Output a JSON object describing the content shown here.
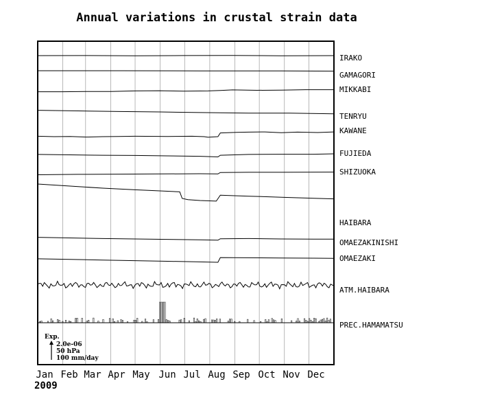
{
  "chart_data": {
    "type": "line",
    "title": "Annual variations in crustal strain data",
    "year": "2009",
    "months": [
      "Jan",
      "Feb",
      "Mar",
      "Apr",
      "May",
      "Jun",
      "Jul",
      "Aug",
      "Sep",
      "Oct",
      "Nov",
      "Dec"
    ],
    "grid": true,
    "legend_position": "right",
    "scale": {
      "label": "Exp.",
      "lines": [
        "2.0e-06",
        "50 hPa",
        "100 mm/day"
      ]
    },
    "series": [
      {
        "name": "IRAKO",
        "points": [
          [
            0,
            0
          ],
          [
            60,
            0.02
          ],
          [
            120,
            -0.05
          ],
          [
            180,
            0.02
          ],
          [
            240,
            0.05
          ],
          [
            300,
            -0.05
          ],
          [
            365,
            0
          ]
        ]
      },
      {
        "name": "GAMAGORI",
        "points": [
          [
            0,
            0
          ],
          [
            100,
            0
          ],
          [
            200,
            -0.05
          ],
          [
            300,
            -0.1
          ],
          [
            365,
            -0.2
          ]
        ]
      },
      {
        "name": "MIKKABI",
        "points": [
          [
            0,
            -0.2
          ],
          [
            30,
            -0.2
          ],
          [
            60,
            -0.1
          ],
          [
            90,
            -0.05
          ],
          [
            120,
            0.2
          ],
          [
            150,
            0.3
          ],
          [
            180,
            0.1
          ],
          [
            210,
            0.2
          ],
          [
            225,
            0.4
          ],
          [
            240,
            0.7
          ],
          [
            270,
            0.5
          ],
          [
            300,
            0.6
          ],
          [
            330,
            0.8
          ],
          [
            365,
            0.8
          ]
        ]
      },
      {
        "name": "TENRYU",
        "points": [
          [
            0,
            0.8
          ],
          [
            50,
            0.5
          ],
          [
            100,
            0.2
          ],
          [
            150,
            0
          ],
          [
            200,
            -0.3
          ],
          [
            260,
            -0.6
          ],
          [
            310,
            -0.6
          ],
          [
            365,
            -0.9
          ]
        ]
      },
      {
        "name": "KAWANE",
        "points": [
          [
            0,
            -0.8
          ],
          [
            20,
            -1.0
          ],
          [
            40,
            -0.9
          ],
          [
            60,
            -1.2
          ],
          [
            80,
            -1.0
          ],
          [
            100,
            -0.9
          ],
          [
            120,
            -0.8
          ],
          [
            160,
            -0.9
          ],
          [
            190,
            -0.8
          ],
          [
            205,
            -1.0
          ],
          [
            210,
            -1.3
          ],
          [
            213,
            -1.2
          ],
          [
            222,
            -1.0
          ],
          [
            225,
            0.8
          ],
          [
            245,
            1.1
          ],
          [
            260,
            1.2
          ],
          [
            280,
            1.3
          ],
          [
            300,
            0.9
          ],
          [
            320,
            1.2
          ],
          [
            345,
            1.0
          ],
          [
            365,
            1.3
          ]
        ]
      },
      {
        "name": "FUJIEDA",
        "points": [
          [
            0,
            0.7
          ],
          [
            40,
            0.5
          ],
          [
            80,
            0.3
          ],
          [
            120,
            0.2
          ],
          [
            160,
            0
          ],
          [
            200,
            -0.2
          ],
          [
            222,
            -0.5
          ],
          [
            225,
            0.3
          ],
          [
            260,
            0.7
          ],
          [
            300,
            0.8
          ],
          [
            340,
            0.8
          ],
          [
            365,
            1.0
          ]
        ]
      },
      {
        "name": "SHIZUOKA",
        "points": [
          [
            0,
            -0.5
          ],
          [
            50,
            -0.3
          ],
          [
            100,
            -0.2
          ],
          [
            150,
            -0.1
          ],
          [
            200,
            0
          ],
          [
            222,
            -0.1
          ],
          [
            225,
            0.6
          ],
          [
            260,
            0.7
          ],
          [
            300,
            0.7
          ],
          [
            365,
            0.8
          ]
        ]
      },
      {
        "name": "HAIBARA",
        "points": [
          [
            0,
            9.0
          ],
          [
            40,
            8.0
          ],
          [
            80,
            7.0
          ],
          [
            120,
            6.2
          ],
          [
            160,
            5.5
          ],
          [
            175,
            5.2
          ],
          [
            178,
            2.0
          ],
          [
            185,
            1.4
          ],
          [
            200,
            1.0
          ],
          [
            220,
            0.7
          ],
          [
            225,
            3.6
          ],
          [
            260,
            3.1
          ],
          [
            300,
            2.6
          ],
          [
            340,
            2.1
          ],
          [
            365,
            1.8
          ]
        ]
      },
      {
        "name": "OMAEZAKINISHI",
        "points": [
          [
            0,
            0.8
          ],
          [
            40,
            0.5
          ],
          [
            80,
            0.2
          ],
          [
            120,
            0
          ],
          [
            160,
            -0.2
          ],
          [
            200,
            -0.4
          ],
          [
            222,
            -0.6
          ],
          [
            225,
            0.1
          ],
          [
            260,
            0.2
          ],
          [
            300,
            0
          ],
          [
            340,
            -0.1
          ],
          [
            365,
            -0.1
          ]
        ]
      },
      {
        "name": "OMAEZAKI",
        "points": [
          [
            0,
            -0.3
          ],
          [
            40,
            -0.6
          ],
          [
            80,
            -0.9
          ],
          [
            120,
            -1.2
          ],
          [
            160,
            -1.5
          ],
          [
            200,
            -1.8
          ],
          [
            222,
            -2.0
          ],
          [
            225,
            0.3
          ],
          [
            260,
            0.2
          ],
          [
            300,
            0.1
          ],
          [
            340,
            0
          ],
          [
            365,
            -0.1
          ]
        ]
      },
      {
        "name": "ATM.HAIBARA"
      },
      {
        "name": "PREC.HAMAMATSU"
      }
    ]
  }
}
